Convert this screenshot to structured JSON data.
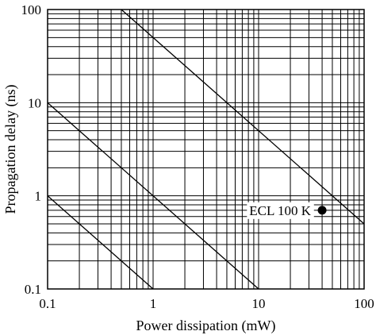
{
  "chart_data": {
    "type": "line",
    "title": "",
    "xlabel": "Power dissipation (mW)",
    "ylabel": "Propagation delay (ns)",
    "x_scale": "log",
    "y_scale": "log",
    "xlim": [
      0.1,
      100
    ],
    "ylim": [
      0.1,
      100
    ],
    "grid": true,
    "x_ticks": [
      {
        "value": 0.1,
        "label": "0.1"
      },
      {
        "value": 1,
        "label": "1"
      },
      {
        "value": 10,
        "label": "10"
      },
      {
        "value": 100,
        "label": "100"
      }
    ],
    "y_ticks": [
      {
        "value": 0.1,
        "label": "0.1"
      },
      {
        "value": 1,
        "label": "1"
      },
      {
        "value": 10,
        "label": "10"
      },
      {
        "value": 100,
        "label": "100"
      }
    ],
    "series": [
      {
        "x": [
          0.1,
          1
        ],
        "y": [
          1,
          0.1
        ]
      },
      {
        "x": [
          0.1,
          10
        ],
        "y": [
          10,
          0.1
        ]
      },
      {
        "x": [
          0.5,
          100
        ],
        "y": [
          100,
          0.5
        ]
      }
    ],
    "annotations": [
      {
        "label": "ECL 100 K",
        "x": 40,
        "y": 0.7
      }
    ],
    "colors": {
      "line": "#000000",
      "grid": "#000000",
      "background": "#ffffff"
    }
  }
}
